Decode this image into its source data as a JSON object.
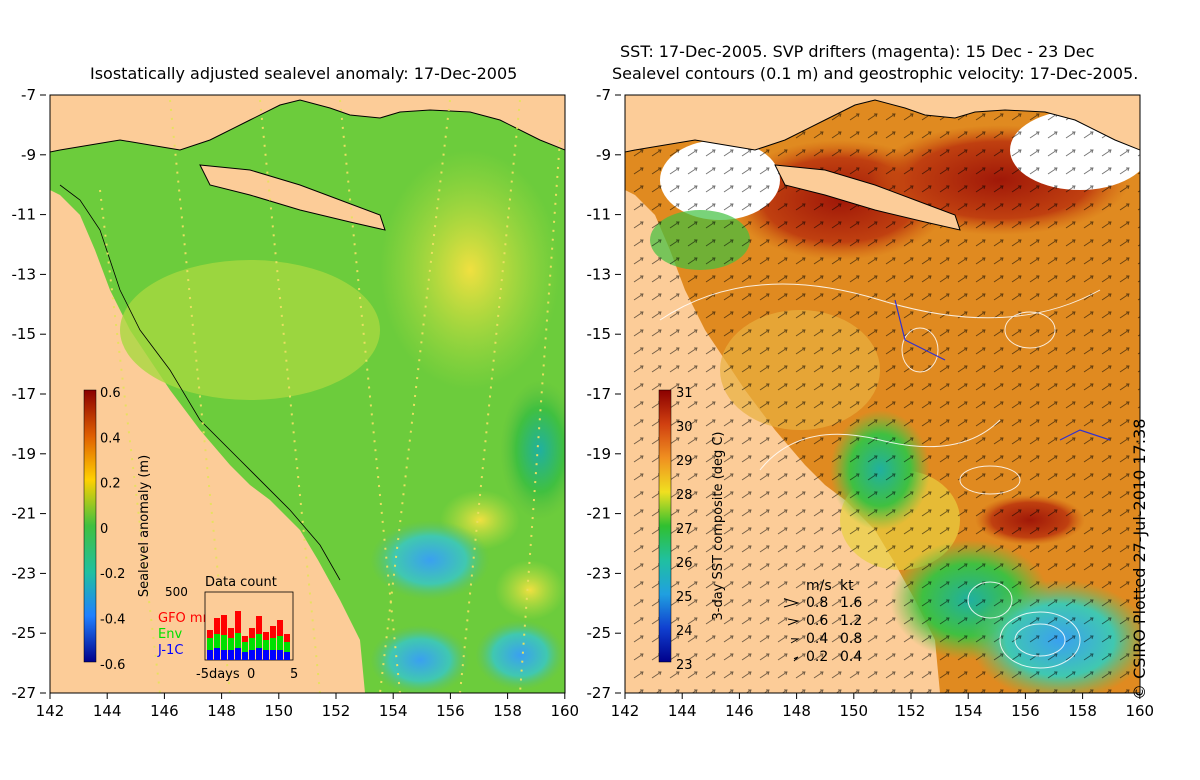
{
  "left_panel": {
    "title": "Isostatically adjusted sealevel anomaly: 17-Dec-2005",
    "y_ticks": [
      "-7",
      "-9",
      "-11",
      "-13",
      "-15",
      "-17",
      "-19",
      "-21",
      "-23",
      "-25",
      "-27"
    ],
    "x_ticks": [
      "142",
      "144",
      "146",
      "148",
      "150",
      "152",
      "154",
      "156",
      "158",
      "160"
    ],
    "colorbar": {
      "label": "Sealevel anomaly (m)",
      "ticks": [
        "0.6",
        "0.4",
        "0.2",
        "0",
        "-0.2",
        "-0.4",
        "-0.6"
      ]
    },
    "data_count": {
      "title": "Data count",
      "max_label": "500",
      "series": [
        {
          "name": "GFO mm",
          "color": "#ff0000"
        },
        {
          "name": "Env",
          "color": "#00e000"
        },
        {
          "name": "J-1C",
          "color": "#0000ff"
        }
      ],
      "x_labels": [
        "-5days",
        "0",
        "5"
      ]
    }
  },
  "right_panel": {
    "title_line1": "SST: 17-Dec-2005. SVP drifters (magenta): 15 Dec - 23 Dec",
    "title_line2": "Sealevel contours (0.1 m) and geostrophic velocity: 17-Dec-2005.",
    "y_ticks": [
      "-7",
      "-9",
      "-11",
      "-13",
      "-15",
      "-17",
      "-19",
      "-21",
      "-23",
      "-25",
      "-27"
    ],
    "x_ticks": [
      "142",
      "144",
      "146",
      "148",
      "150",
      "152",
      "154",
      "156",
      "158",
      "160"
    ],
    "colorbar": {
      "label": "3-day SST composite (deg C)",
      "ticks": [
        "31",
        "30",
        "29",
        "28",
        "27",
        "26",
        "25",
        "24",
        "23"
      ]
    },
    "velocity_legend": {
      "header_ms": "m/s",
      "header_kt": "kt",
      "rows": [
        {
          "ms": "0.8",
          "kt": "1.6"
        },
        {
          "ms": "0.6",
          "kt": "1.2"
        },
        {
          "ms": "0.4",
          "kt": "0.8"
        },
        {
          "ms": "0.2",
          "kt": "0.4"
        }
      ]
    }
  },
  "copyright": "© CSIRO Plotted 27-Jul-2010 17:38",
  "colors": {
    "land": "#fccc98"
  }
}
